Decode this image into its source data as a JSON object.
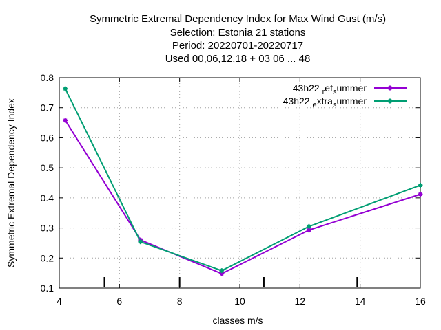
{
  "chart_data": {
    "type": "line",
    "title_lines": [
      "Symmetric Extremal Dependency Index  for Max Wind Gust (m/s)",
      "Selection: Estonia     21 stations",
      "Period: 20220701-20220717",
      "Used  00,06,12,18  + 03 06 ... 48"
    ],
    "xlabel": "classes m/s",
    "ylabel": "Symmetric Extremal Dependency Index",
    "xlim": [
      4,
      16
    ],
    "ylim": [
      0.1,
      0.8
    ],
    "xticks": [
      4,
      6,
      8,
      10,
      12,
      14,
      16
    ],
    "yticks": [
      0.1,
      0.2,
      0.3,
      0.4,
      0.5,
      0.6,
      0.7,
      0.8
    ],
    "xtick_labels": [
      "4",
      "6",
      "8",
      "10",
      "12",
      "14",
      "16"
    ],
    "ytick_labels": [
      "0.1",
      "0.2",
      "0.3",
      "0.4",
      "0.5",
      "0.6",
      "0.7",
      "0.8"
    ],
    "grid": true,
    "legend_position": "top-right",
    "class_boundaries": [
      5.5,
      8.0,
      10.8,
      13.9
    ],
    "series": [
      {
        "name": "43h22 ref summer",
        "legend_parts": [
          [
            "43h22 ",
            "n"
          ],
          [
            "r",
            "sub"
          ],
          [
            "ef",
            "n"
          ],
          [
            "s",
            "sub"
          ],
          [
            "ummer",
            "n"
          ]
        ],
        "color": "#9400d3",
        "x": [
          4.2,
          6.7,
          9.4,
          12.3,
          16.0
        ],
        "y": [
          0.658,
          0.26,
          0.148,
          0.293,
          0.412
        ]
      },
      {
        "name": "43h22 extra summer",
        "legend_parts": [
          [
            "43h22 ",
            "n"
          ],
          [
            "e",
            "sub"
          ],
          [
            "xtra",
            "n"
          ],
          [
            "s",
            "sub"
          ],
          [
            "ummer",
            "n"
          ]
        ],
        "color": "#009e73",
        "x": [
          4.2,
          6.7,
          9.4,
          12.3,
          16.0
        ],
        "y": [
          0.763,
          0.254,
          0.158,
          0.305,
          0.442
        ]
      }
    ]
  }
}
